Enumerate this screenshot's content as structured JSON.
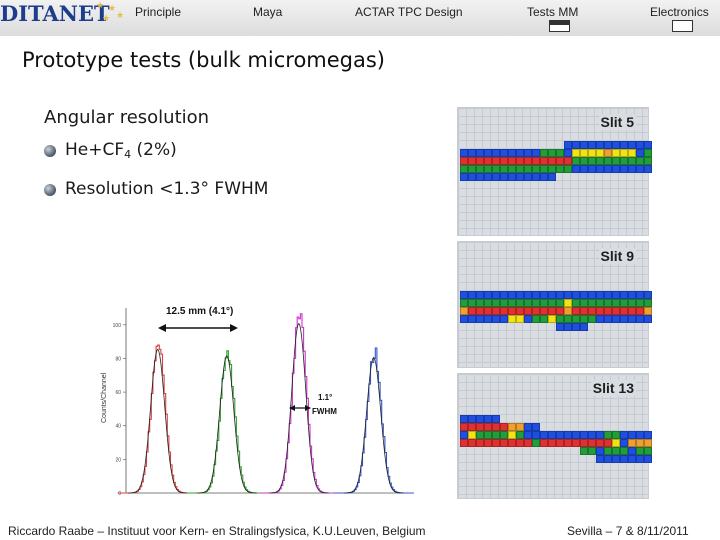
{
  "logo": {
    "text": "DITANET"
  },
  "nav": {
    "items": [
      {
        "label": "Principle"
      },
      {
        "label": "Maya"
      },
      {
        "label": "ACTAR TPC Design"
      },
      {
        "label": "Tests MM"
      },
      {
        "label": "Electronics"
      }
    ]
  },
  "slide": {
    "title": "Prototype tests (bulk micromegas)",
    "heading": "Angular resolution",
    "bullet1_main": "He+CF",
    "bullet1_sub": "4",
    "bullet1_tail": " (2%)",
    "bullet2": "Resolution <1.3° FWHM"
  },
  "colors": {
    "blue": "#1f4fe0",
    "green": "#1f9e3a",
    "yellow": "#f2e414",
    "orange": "#f0a030",
    "red": "#e23030",
    "grid_bg": "#d9dde2"
  },
  "chart_data": {
    "type": "line",
    "title": "",
    "xlabel": "",
    "ylabel": "Counts/Channel",
    "yticks": [
      "0",
      "20",
      "40",
      "60",
      "80",
      "100"
    ],
    "ylim": [
      0,
      110
    ],
    "series": [
      {
        "name": "peak-red",
        "color": "#d94040",
        "center": 0.11,
        "height": 89
      },
      {
        "name": "peak-green",
        "color": "#2ea02e",
        "center": 0.35,
        "height": 85
      },
      {
        "name": "peak-magenta",
        "color": "#cc33cc",
        "center": 0.6,
        "height": 105
      },
      {
        "name": "peak-blue",
        "color": "#3355cc",
        "center": 0.86,
        "height": 84
      }
    ],
    "annotations": [
      {
        "text": "12.5 mm (4.1°)"
      },
      {
        "text": "1.1°"
      },
      {
        "text": "FWHM"
      }
    ]
  },
  "slits": [
    {
      "label": "Slit 5",
      "rows": [
        [
          "",
          "",
          "",
          "",
          "",
          "",
          "",
          "",
          "",
          "",
          "",
          "",
          "",
          "B",
          "B",
          "B",
          "B",
          "B",
          "B",
          "B",
          "B",
          "B",
          "B",
          "B"
        ],
        [
          "B",
          "B",
          "B",
          "B",
          "B",
          "B",
          "B",
          "B",
          "B",
          "B",
          "G",
          "G",
          "G",
          "B",
          "Y",
          "Y",
          "Y",
          "Y",
          "O",
          "Y",
          "Y",
          "Y",
          "B",
          "G"
        ],
        [
          "R",
          "R",
          "R",
          "R",
          "R",
          "R",
          "R",
          "R",
          "R",
          "R",
          "R",
          "R",
          "R",
          "R",
          "G",
          "G",
          "G",
          "G",
          "G",
          "G",
          "G",
          "G",
          "G",
          "G"
        ],
        [
          "G",
          "G",
          "G",
          "G",
          "G",
          "G",
          "G",
          "G",
          "G",
          "G",
          "G",
          "G",
          "G",
          "G",
          "B",
          "B",
          "B",
          "B",
          "B",
          "B",
          "B",
          "B",
          "B",
          "B"
        ],
        [
          "B",
          "B",
          "B",
          "B",
          "B",
          "B",
          "B",
          "B",
          "B",
          "B",
          "B",
          "B",
          "",
          "",
          "",
          "",
          "",
          "",
          "",
          "",
          "",
          "",
          "",
          ""
        ]
      ]
    },
    {
      "label": "Slit 9",
      "rows": [
        [
          "B",
          "B",
          "B",
          "B",
          "B",
          "B",
          "B",
          "B",
          "B",
          "B",
          "B",
          "B",
          "B",
          "B",
          "B",
          "B",
          "B",
          "B",
          "B",
          "B",
          "B",
          "B",
          "B",
          "B"
        ],
        [
          "G",
          "G",
          "G",
          "G",
          "G",
          "G",
          "G",
          "G",
          "G",
          "G",
          "G",
          "G",
          "G",
          "Y",
          "G",
          "G",
          "G",
          "G",
          "G",
          "G",
          "G",
          "G",
          "G",
          "G"
        ],
        [
          "O",
          "R",
          "R",
          "R",
          "R",
          "R",
          "R",
          "R",
          "R",
          "R",
          "R",
          "R",
          "R",
          "O",
          "R",
          "R",
          "R",
          "R",
          "R",
          "R",
          "R",
          "R",
          "R",
          "O"
        ],
        [
          "B",
          "B",
          "B",
          "B",
          "B",
          "B",
          "Y",
          "Y",
          "B",
          "G",
          "G",
          "Y",
          "G",
          "G",
          "G",
          "G",
          "G",
          "B",
          "B",
          "B",
          "B",
          "B",
          "B",
          "B"
        ],
        [
          "",
          "",
          "",
          "",
          "",
          "",
          "",
          "",
          "",
          "",
          "",
          "",
          "B",
          "B",
          "B",
          "B",
          "",
          "",
          "",
          "",
          "",
          "",
          "",
          ""
        ]
      ]
    },
    {
      "label": "Slit 13",
      "rows": [
        [
          "",
          "",
          "",
          "",
          "",
          "",
          "",
          "",
          "",
          "",
          "",
          "",
          "",
          "",
          "",
          "",
          "",
          "",
          "",
          "",
          "",
          "",
          "",
          ""
        ],
        [
          "B",
          "B",
          "B",
          "B",
          "B",
          "",
          "",
          "",
          "",
          "",
          "",
          "",
          "",
          "",
          "",
          "",
          "",
          "",
          "",
          "",
          "",
          "",
          "",
          ""
        ],
        [
          "R",
          "R",
          "R",
          "R",
          "R",
          "R",
          "O",
          "O",
          "B",
          "B",
          "",
          "",
          "",
          "",
          "",
          "",
          "",
          "",
          "",
          "",
          "",
          "",
          "",
          ""
        ],
        [
          "B",
          "Y",
          "G",
          "G",
          "G",
          "G",
          "Y",
          "G",
          "B",
          "B",
          "B",
          "B",
          "B",
          "B",
          "B",
          "B",
          "B",
          "B",
          "G",
          "G",
          "B",
          "B",
          "B",
          "B"
        ],
        [
          "R",
          "R",
          "R",
          "R",
          "R",
          "R",
          "R",
          "R",
          "R",
          "G",
          "R",
          "R",
          "R",
          "R",
          "R",
          "R",
          "R",
          "R",
          "R",
          "Y",
          "B",
          "O",
          "O",
          "O"
        ],
        [
          "",
          "",
          "",
          "",
          "",
          "",
          "",
          "",
          "",
          "",
          "",
          "",
          "",
          "",
          "",
          "G",
          "G",
          "B",
          "G",
          "G",
          "G",
          "B",
          "G",
          "G"
        ],
        [
          "",
          "",
          "",
          "",
          "",
          "",
          "",
          "",
          "",
          "",
          "",
          "",
          "",
          "",
          "",
          "",
          "",
          "B",
          "B",
          "B",
          "B",
          "B",
          "B",
          "B"
        ]
      ]
    }
  ],
  "footer": {
    "left": "Riccardo Raabe – Instituut voor Kern- en Stralingsfysica, K.U.Leuven, Belgium",
    "right": "Sevilla – 7 & 8/11/2011"
  }
}
